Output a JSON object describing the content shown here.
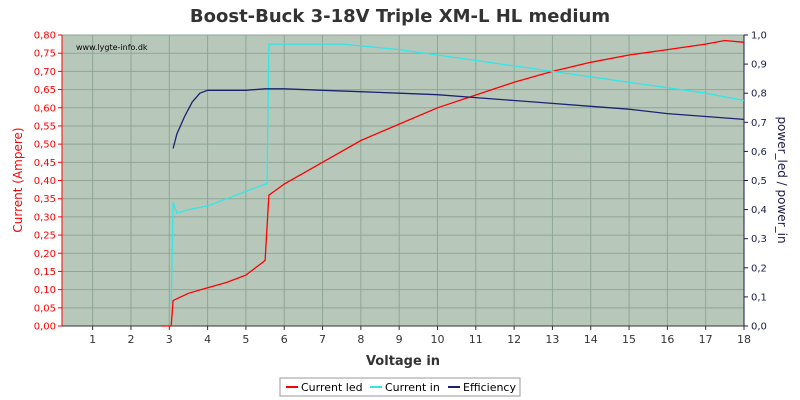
{
  "chart_data": {
    "type": "line",
    "title": "Boost-Buck 3-18V Triple XM-L HL medium",
    "watermark": "www.lygte-info.dk",
    "xlabel": "Voltage in",
    "ylabel_left": "Current (Ampere)",
    "ylabel_right": "power_led / power_in",
    "xlim": [
      0.2,
      18
    ],
    "ylim_left": [
      0,
      0.8
    ],
    "ylim_right": [
      0,
      1.0
    ],
    "x_ticks": [
      "1",
      "2",
      "3",
      "4",
      "5",
      "6",
      "7",
      "8",
      "9",
      "10",
      "11",
      "12",
      "13",
      "14",
      "15",
      "16",
      "17",
      "18"
    ],
    "y_ticks_left": [
      "0,00",
      "0,05",
      "0,10",
      "0,15",
      "0,20",
      "0,25",
      "0,30",
      "0,35",
      "0,40",
      "0,45",
      "0,50",
      "0,55",
      "0,60",
      "0,65",
      "0,70",
      "0,75",
      "0,80"
    ],
    "y_ticks_right": [
      "0,0",
      "0,1",
      "0,2",
      "0,3",
      "0,4",
      "0,5",
      "0,6",
      "0,7",
      "0,8",
      "0,9",
      "1,0"
    ],
    "grid": true,
    "legend_position": "bottom-center",
    "colors": {
      "plot_background": "#b7c8bb",
      "grid": "#8fa595",
      "current_led": "#ff0000",
      "current_in": "#33e6e6",
      "efficiency": "#1a2370",
      "left_axis": "#ff0000",
      "right_axis": "#1a1a4a"
    },
    "series": [
      {
        "name": "Current led",
        "axis": "left",
        "x": [
          2.8,
          3.05,
          3.1,
          3.5,
          4.0,
          4.5,
          5.0,
          5.5,
          5.6,
          5.8,
          6.0,
          6.5,
          7.0,
          8.0,
          9.0,
          10.0,
          11.0,
          12.0,
          13.0,
          14.0,
          15.0,
          16.0,
          17.0,
          17.5,
          18.0
        ],
        "values": [
          0.0,
          0.0,
          0.07,
          0.09,
          0.105,
          0.12,
          0.14,
          0.18,
          0.36,
          0.375,
          0.39,
          0.42,
          0.45,
          0.51,
          0.555,
          0.6,
          0.635,
          0.67,
          0.7,
          0.725,
          0.745,
          0.76,
          0.775,
          0.785,
          0.78
        ]
      },
      {
        "name": "Current in",
        "axis": "left",
        "x": [
          3.05,
          3.1,
          3.2,
          3.5,
          4.0,
          4.5,
          5.0,
          5.5,
          5.55,
          5.6,
          6.0,
          7.0,
          7.5,
          8.0,
          9.0,
          10.0,
          11.0,
          12.0,
          13.0,
          14.0,
          15.0,
          16.0,
          17.0,
          18.0
        ],
        "values": [
          0.06,
          0.34,
          0.31,
          0.32,
          0.33,
          0.35,
          0.37,
          0.39,
          0.39,
          0.775,
          0.775,
          0.775,
          0.775,
          0.77,
          0.76,
          0.745,
          0.73,
          0.715,
          0.7,
          0.685,
          0.67,
          0.655,
          0.64,
          0.62
        ]
      },
      {
        "name": "Efficiency",
        "axis": "right",
        "x": [
          3.1,
          3.2,
          3.4,
          3.6,
          3.8,
          4.0,
          4.5,
          5.0,
          5.5,
          6.0,
          7.0,
          8.0,
          9.0,
          10.0,
          11.0,
          12.0,
          13.0,
          14.0,
          15.0,
          16.0,
          17.0,
          18.0
        ],
        "values": [
          0.61,
          0.66,
          0.72,
          0.77,
          0.8,
          0.81,
          0.81,
          0.81,
          0.815,
          0.815,
          0.81,
          0.805,
          0.8,
          0.795,
          0.785,
          0.775,
          0.765,
          0.755,
          0.745,
          0.73,
          0.72,
          0.71
        ]
      }
    ]
  }
}
